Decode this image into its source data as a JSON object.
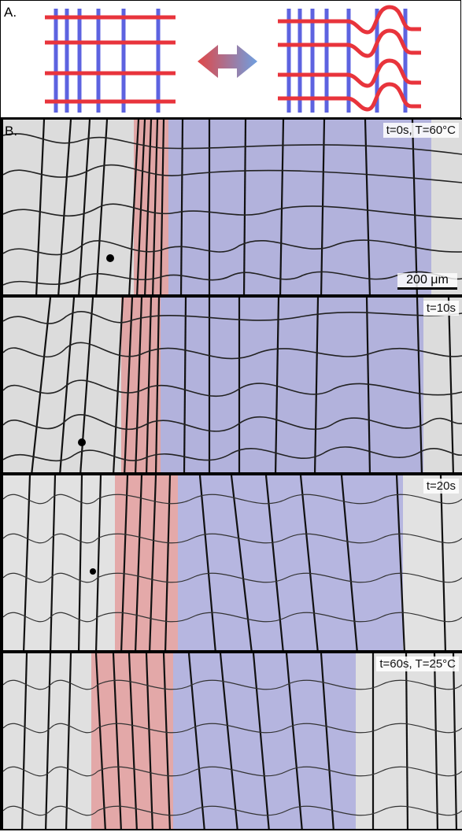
{
  "panel_a": {
    "label": "A."
  },
  "panel_b": {
    "label": "B.",
    "frames": [
      {
        "time_label": "t=0s, T=60°C"
      },
      {
        "time_label": "t=10s"
      },
      {
        "time_label": "t=20s"
      },
      {
        "time_label": "t=60s, T=25°C"
      }
    ],
    "scalebar_label": "200 μm"
  },
  "colors": {
    "red_fiber": "#e8343c",
    "blue_fiber": "#5d63e0",
    "red_region": "rgba(230,90,90,0.42)",
    "blue_region": "rgba(110,110,220,0.38)",
    "arrow_red": "#e04848",
    "arrow_blue": "#6f9fe0"
  }
}
